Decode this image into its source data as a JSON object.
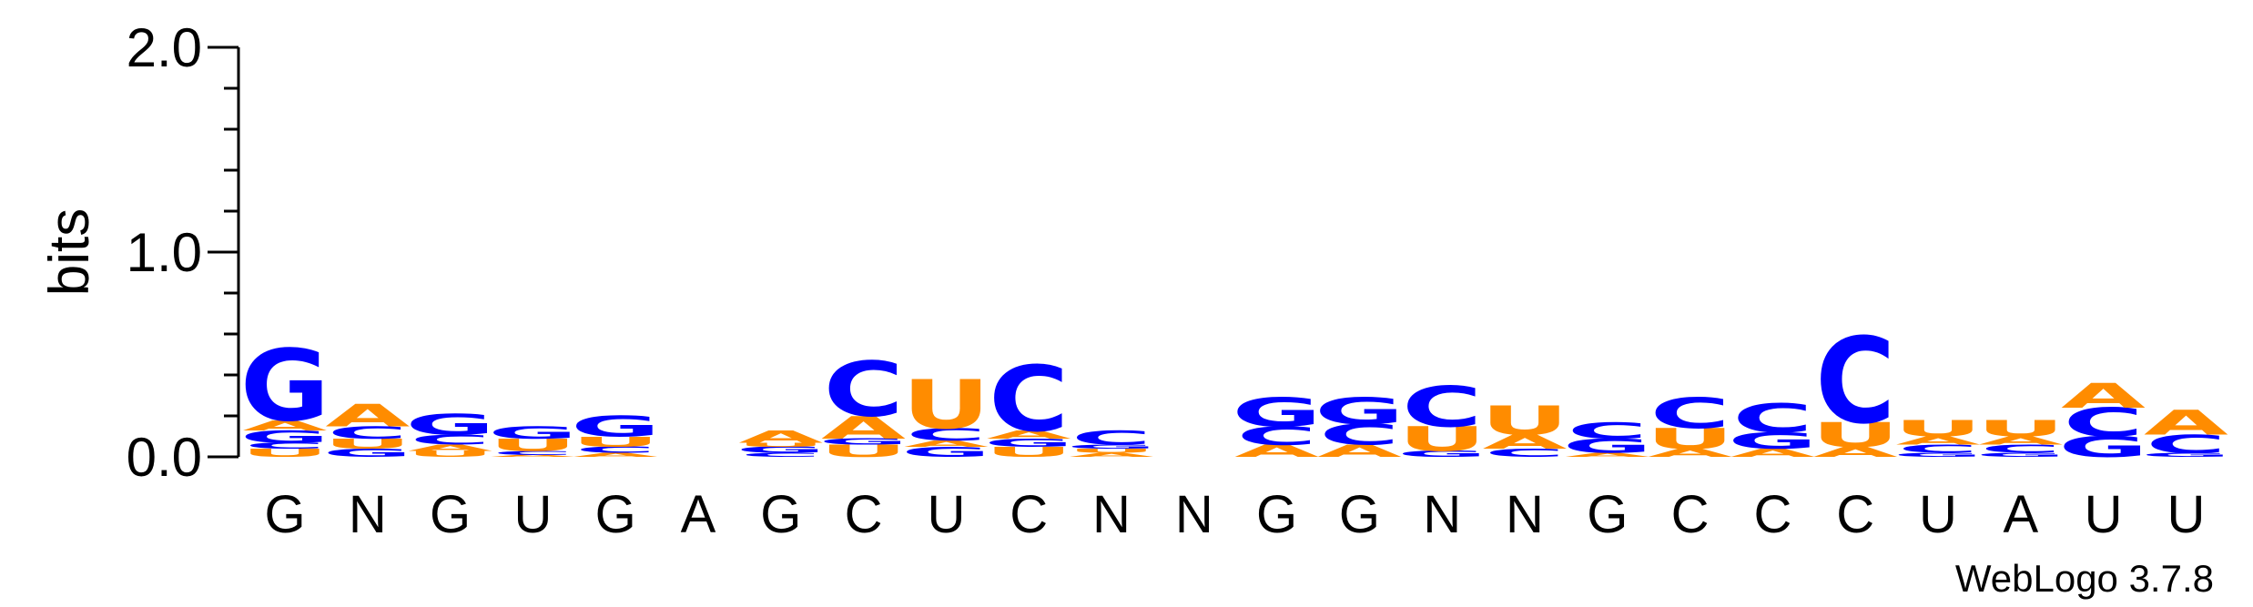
{
  "chart_data": {
    "type": "sequence-logo",
    "ylabel": "bits",
    "ylim": [
      0,
      2.0
    ],
    "yticks": [
      "0.0",
      "1.0",
      "2.0"
    ],
    "colors": {
      "C": "#0000ff",
      "G": "#0000ff",
      "A": "#ff8c00",
      "U": "#ff8c00",
      "N": "#000000"
    },
    "positions": [
      {
        "label": "G",
        "stack": [
          [
            "U",
            0.04
          ],
          [
            "C",
            0.03
          ],
          [
            "G",
            0.06
          ],
          [
            "A",
            0.05
          ],
          [
            "G",
            0.35
          ]
        ]
      },
      {
        "label": "N",
        "stack": [
          [
            "G",
            0.04
          ],
          [
            "U",
            0.05
          ],
          [
            "C",
            0.06
          ],
          [
            "A",
            0.11
          ]
        ]
      },
      {
        "label": "G",
        "stack": [
          [
            "U",
            0.03
          ],
          [
            "A",
            0.03
          ],
          [
            "C",
            0.05
          ],
          [
            "G",
            0.1
          ]
        ]
      },
      {
        "label": "U",
        "stack": [
          [
            "A",
            0.01
          ],
          [
            "C",
            0.02
          ],
          [
            "U",
            0.06
          ],
          [
            "G",
            0.06
          ]
        ]
      },
      {
        "label": "G",
        "stack": [
          [
            "A",
            0.02
          ],
          [
            "C",
            0.03
          ],
          [
            "U",
            0.05
          ],
          [
            "G",
            0.1
          ]
        ]
      },
      {
        "label": "A",
        "stack": []
      },
      {
        "label": "G",
        "stack": [
          [
            "C",
            0.02
          ],
          [
            "G",
            0.03
          ],
          [
            "U",
            0.02
          ],
          [
            "A",
            0.06
          ]
        ]
      },
      {
        "label": "C",
        "stack": [
          [
            "U",
            0.06
          ],
          [
            "G",
            0.03
          ],
          [
            "A",
            0.11
          ],
          [
            "C",
            0.27
          ]
        ]
      },
      {
        "label": "U",
        "stack": [
          [
            "G",
            0.05
          ],
          [
            "A",
            0.03
          ],
          [
            "C",
            0.06
          ],
          [
            "U",
            0.24
          ]
        ]
      },
      {
        "label": "C",
        "stack": [
          [
            "U",
            0.05
          ],
          [
            "G",
            0.04
          ],
          [
            "A",
            0.04
          ],
          [
            "C",
            0.32
          ]
        ]
      },
      {
        "label": "N",
        "stack": [
          [
            "A",
            0.02
          ],
          [
            "U",
            0.02
          ],
          [
            "G",
            0.02
          ],
          [
            "C",
            0.07
          ]
        ]
      },
      {
        "label": "N",
        "stack": []
      },
      {
        "label": "G",
        "stack": [
          [
            "A",
            0.06
          ],
          [
            "C",
            0.09
          ],
          [
            "G",
            0.14
          ]
        ]
      },
      {
        "label": "G",
        "stack": [
          [
            "A",
            0.06
          ],
          [
            "C",
            0.1
          ],
          [
            "G",
            0.13
          ]
        ]
      },
      {
        "label": "N",
        "stack": [
          [
            "G",
            0.03
          ],
          [
            "U",
            0.12
          ],
          [
            "C",
            0.2
          ]
        ]
      },
      {
        "label": "N",
        "stack": [
          [
            "C",
            0.04
          ],
          [
            "A",
            0.07
          ],
          [
            "U",
            0.14
          ]
        ]
      },
      {
        "label": "G",
        "stack": [
          [
            "A",
            0.02
          ],
          [
            "G",
            0.07
          ],
          [
            "C",
            0.08
          ]
        ]
      },
      {
        "label": "C",
        "stack": [
          [
            "A",
            0.04
          ],
          [
            "U",
            0.1
          ],
          [
            "C",
            0.15
          ]
        ]
      },
      {
        "label": "C",
        "stack": [
          [
            "A",
            0.04
          ],
          [
            "G",
            0.08
          ],
          [
            "C",
            0.14
          ]
        ]
      },
      {
        "label": "C",
        "stack": [
          [
            "A",
            0.05
          ],
          [
            "U",
            0.12
          ],
          [
            "C",
            0.42
          ]
        ]
      },
      {
        "label": "U",
        "stack": [
          [
            "G",
            0.02
          ],
          [
            "C",
            0.04
          ],
          [
            "A",
            0.04
          ],
          [
            "U",
            0.08
          ]
        ]
      },
      {
        "label": "A",
        "stack": [
          [
            "G",
            0.02
          ],
          [
            "C",
            0.04
          ],
          [
            "A",
            0.04
          ],
          [
            "U",
            0.08
          ]
        ]
      },
      {
        "label": "U",
        "stack": [
          [
            "G",
            0.1
          ],
          [
            "C",
            0.14
          ],
          [
            "A",
            0.12
          ]
        ]
      },
      {
        "label": "U",
        "stack": [
          [
            "G",
            0.02
          ],
          [
            "C",
            0.09
          ],
          [
            "A",
            0.12
          ]
        ]
      }
    ],
    "credit": "WebLogo 3.7.8"
  }
}
